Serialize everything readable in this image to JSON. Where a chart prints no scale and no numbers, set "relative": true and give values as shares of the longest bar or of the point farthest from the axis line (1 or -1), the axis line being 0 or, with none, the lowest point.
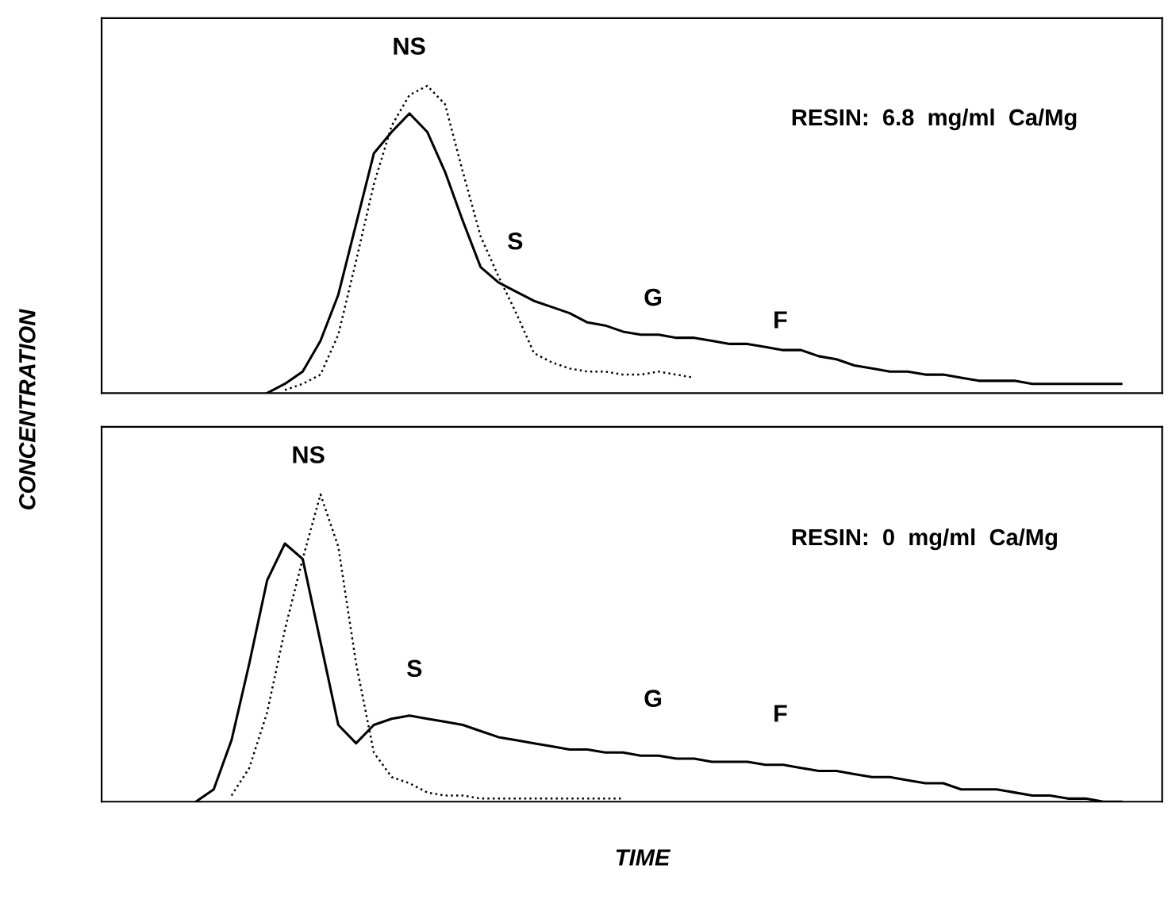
{
  "chart_data": [
    {
      "type": "line",
      "relative": true,
      "ylabel": "CONCENTRATION",
      "tick_labels": false,
      "categories": [
        null,
        null,
        null,
        null,
        null,
        null,
        null,
        null,
        null,
        null,
        null,
        null,
        null,
        null,
        null,
        null,
        null,
        null,
        null,
        null,
        null,
        null,
        null,
        null,
        null,
        null,
        null,
        null,
        null,
        null,
        null,
        null,
        null,
        null,
        null,
        null,
        null,
        null,
        null,
        null,
        null,
        null,
        null,
        null,
        null,
        null,
        null,
        null,
        null,
        null,
        null,
        null,
        null,
        null,
        null,
        null,
        null,
        null,
        null,
        null
      ],
      "annotations": [
        "NS",
        "S",
        "G",
        "F",
        "RESIN:  6.8  mg/ml  Ca/Mg"
      ],
      "series": [
        {
          "color": "#000000",
          "line_style": "solid",
          "values": [
            null,
            null,
            null,
            null,
            null,
            null,
            null,
            null,
            null,
            0,
            0.03,
            0.07,
            0.17,
            0.32,
            0.55,
            0.78,
            0.85,
            0.91,
            0.85,
            0.72,
            0.56,
            0.41,
            0.36,
            0.33,
            0.3,
            0.28,
            0.26,
            0.23,
            0.22,
            0.2,
            0.19,
            0.19,
            0.18,
            0.18,
            0.17,
            0.16,
            0.16,
            0.15,
            0.14,
            0.14,
            0.12,
            0.11,
            0.09,
            0.08,
            0.07,
            0.07,
            0.06,
            0.06,
            0.05,
            0.04,
            0.04,
            0.04,
            0.03,
            0.03,
            0.03,
            0.03,
            0.03,
            0.03,
            null,
            null
          ]
        },
        {
          "color": "#000000",
          "line_style": "dotted",
          "values": [
            null,
            null,
            null,
            null,
            null,
            null,
            null,
            null,
            null,
            null,
            0.01,
            0.03,
            0.06,
            0.19,
            0.43,
            0.68,
            0.87,
            0.97,
            1.0,
            0.94,
            0.72,
            0.51,
            0.38,
            0.26,
            0.13,
            0.1,
            0.08,
            0.07,
            0.07,
            0.06,
            0.06,
            0.07,
            0.06,
            0.05,
            null,
            null,
            null,
            null,
            null,
            null,
            null,
            null,
            null,
            null,
            null,
            null,
            null,
            null,
            null,
            null,
            null,
            null,
            null,
            null,
            null,
            null,
            null,
            null,
            null,
            null
          ]
        }
      ]
    },
    {
      "type": "line",
      "relative": true,
      "xlabel": "TIME",
      "tick_labels": false,
      "categories": [
        null,
        null,
        null,
        null,
        null,
        null,
        null,
        null,
        null,
        null,
        null,
        null,
        null,
        null,
        null,
        null,
        null,
        null,
        null,
        null,
        null,
        null,
        null,
        null,
        null,
        null,
        null,
        null,
        null,
        null,
        null,
        null,
        null,
        null,
        null,
        null,
        null,
        null,
        null,
        null,
        null,
        null,
        null,
        null,
        null,
        null,
        null,
        null,
        null,
        null,
        null,
        null,
        null,
        null,
        null,
        null,
        null,
        null,
        null,
        null
      ],
      "annotations": [
        "NS",
        "S",
        "G",
        "F",
        "RESIN:  0  mg/ml  Ca/Mg"
      ],
      "series": [
        {
          "color": "#000000",
          "line_style": "solid",
          "values": [
            null,
            null,
            null,
            null,
            null,
            0,
            0.04,
            0.2,
            0.45,
            0.72,
            0.84,
            0.79,
            0.52,
            0.25,
            0.19,
            0.25,
            0.27,
            0.28,
            0.27,
            0.26,
            0.25,
            0.23,
            0.21,
            0.2,
            0.19,
            0.18,
            0.17,
            0.17,
            0.16,
            0.16,
            0.15,
            0.15,
            0.14,
            0.14,
            0.13,
            0.13,
            0.13,
            0.12,
            0.12,
            0.11,
            0.1,
            0.1,
            0.09,
            0.08,
            0.08,
            0.07,
            0.06,
            0.06,
            0.04,
            0.04,
            0.04,
            0.03,
            0.02,
            0.02,
            0.01,
            0.01,
            0.0,
            0,
            null,
            null
          ]
        },
        {
          "color": "#000000",
          "line_style": "dotted",
          "values": [
            null,
            null,
            null,
            null,
            null,
            null,
            null,
            0.02,
            0.11,
            0.29,
            0.56,
            0.79,
            1.0,
            0.83,
            0.45,
            0.16,
            0.08,
            0.06,
            0.03,
            0.02,
            0.02,
            0.01,
            0.01,
            0.01,
            0.01,
            0.01,
            0.01,
            0.01,
            0.01,
            0.01,
            null,
            null,
            null,
            null,
            null,
            null,
            null,
            null,
            null,
            null,
            null,
            null,
            null,
            null,
            null,
            null,
            null,
            null,
            null,
            null,
            null,
            null,
            null,
            null,
            null,
            null,
            null,
            null,
            null,
            null
          ]
        }
      ]
    }
  ]
}
